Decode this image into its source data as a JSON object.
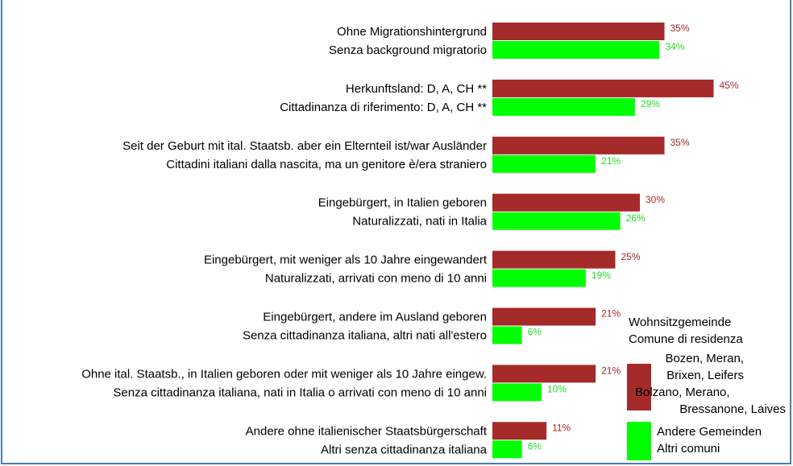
{
  "chart_data": {
    "type": "bar",
    "orientation": "horizontal",
    "categories": [
      [
        "Ohne Migrationshintergrund",
        "Senza background migratorio"
      ],
      [
        "Herkunftsland: D, A, CH **",
        "Cittadinanza di riferimento: D, A, CH **"
      ],
      [
        "Seit der Geburt mit ital. Staatsb. aber ein Elternteil ist/war Ausländer",
        "Cittadini italiani dalla nascita, ma un genitore è/era straniero"
      ],
      [
        "Eingebürgert, in Italien geboren",
        "Naturalizzati, nati in Italia"
      ],
      [
        "Eingebürgert, mit weniger als 10 Jahre eingewandert",
        "Naturalizzati, arrivati con meno di 10 anni"
      ],
      [
        "Eingebürgert, andere im Ausland geboren",
        "Senza cittadinanza italiana, altri nati all'estero"
      ],
      [
        "Ohne ital. Staatsb., in Italien geboren oder mit weniger als 10 Jahre eingew.",
        "Senza cittadinanza italiana, nati in Italia o arrivati con meno di 10 anni"
      ],
      [
        "Andere ohne italienischer Staatsbürgerschaft",
        "Altri senza cittadinanza italiana"
      ]
    ],
    "series": [
      {
        "name": [
          "Bozen, Meran,",
          "Brixen, Leifers",
          "Bolzano, Merano,",
          "Bressanone, Laives"
        ],
        "color": "#a52a2a",
        "label_color": "#a52a2a",
        "values": [
          35,
          45,
          35,
          30,
          25,
          21,
          21,
          11
        ],
        "value_labels": [
          "35%",
          "45%",
          "35%",
          "30%",
          "25%",
          "21%",
          "21%",
          "11%"
        ]
      },
      {
        "name": [
          "Andere Gemeinden",
          "Altri comuni"
        ],
        "color": "#00ff00",
        "label_color": "#22dd22",
        "values": [
          34,
          29,
          21,
          26,
          19,
          6,
          10,
          6
        ],
        "value_labels": [
          "34%",
          "29%",
          "21%",
          "26%",
          "19%",
          "6%",
          "10%",
          "6%"
        ]
      }
    ],
    "legend_title": [
      "Wohnsitzgemeinde",
      "Comune di residenza"
    ]
  }
}
